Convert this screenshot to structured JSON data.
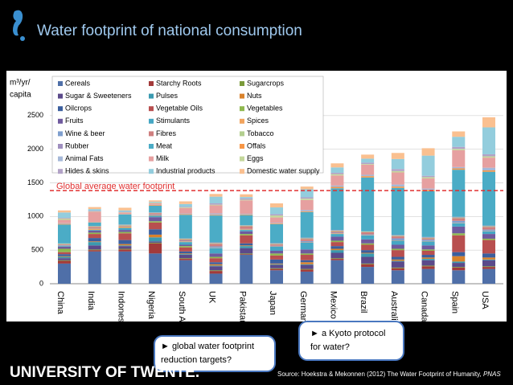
{
  "chart_data": {
    "type": "bar",
    "stacked": true,
    "title": "Water footprint of national consumption",
    "y_label": [
      "m³/yr/",
      "capita"
    ],
    "categories": [
      "China",
      "India",
      "Indonesia",
      "Nigeria",
      "South Africa",
      "UK",
      "Pakistan",
      "Japan",
      "Germany",
      "Mexico",
      "Brazil",
      "Australia",
      "Canada",
      "Spain",
      "USA"
    ],
    "ylim": [
      0,
      3000
    ],
    "yticks": [
      0,
      500,
      1000,
      1500,
      2000,
      2500
    ],
    "grid": true,
    "reference_line": {
      "value": 1385,
      "label": "Global average water footprint",
      "color": "#e03030"
    },
    "series": [
      {
        "name": "Cereals",
        "color": "#4f6fa8",
        "values": [
          300,
          480,
          480,
          450,
          350,
          150,
          430,
          200,
          180,
          350,
          250,
          200,
          220,
          200,
          220
        ]
      },
      {
        "name": "Starchy Roots",
        "color": "#a33a3a",
        "values": [
          40,
          20,
          30,
          150,
          20,
          40,
          10,
          20,
          30,
          20,
          40,
          30,
          40,
          40,
          30
        ]
      },
      {
        "name": "Sugarcrops",
        "color": "#7a9a3a",
        "values": [
          10,
          10,
          10,
          10,
          10,
          10,
          10,
          10,
          10,
          10,
          10,
          10,
          10,
          10,
          10
        ]
      },
      {
        "name": "Sugar & Sweeteners",
        "color": "#5b4a8a",
        "values": [
          30,
          60,
          40,
          20,
          50,
          60,
          80,
          50,
          60,
          80,
          100,
          90,
          80,
          60,
          90
        ]
      },
      {
        "name": "Pulses",
        "color": "#3a9ab0",
        "values": [
          20,
          50,
          10,
          60,
          10,
          10,
          30,
          10,
          10,
          40,
          50,
          10,
          20,
          20,
          10
        ]
      },
      {
        "name": "Nuts",
        "color": "#d9822b",
        "values": [
          10,
          10,
          20,
          40,
          10,
          20,
          10,
          10,
          30,
          20,
          10,
          20,
          20,
          80,
          30
        ]
      },
      {
        "name": "Oilcrops",
        "color": "#3b5f9e",
        "values": [
          30,
          50,
          60,
          80,
          30,
          30,
          30,
          60,
          30,
          40,
          40,
          40,
          40,
          60,
          60
        ]
      },
      {
        "name": "Vegetable Oils",
        "color": "#b84f4f",
        "values": [
          30,
          60,
          100,
          100,
          60,
          60,
          120,
          60,
          80,
          60,
          80,
          100,
          60,
          250,
          200
        ]
      },
      {
        "name": "Vegetables",
        "color": "#8fb84f",
        "values": [
          50,
          20,
          20,
          20,
          20,
          20,
          20,
          30,
          20,
          20,
          20,
          20,
          20,
          30,
          20
        ]
      },
      {
        "name": "Fruits",
        "color": "#6f5a9e",
        "values": [
          30,
          30,
          30,
          60,
          20,
          50,
          40,
          40,
          60,
          60,
          60,
          60,
          60,
          100,
          70
        ]
      },
      {
        "name": "Stimulants",
        "color": "#45a7c4",
        "values": [
          10,
          10,
          30,
          20,
          40,
          80,
          20,
          60,
          100,
          40,
          60,
          60,
          60,
          50,
          40
        ]
      },
      {
        "name": "Spices",
        "color": "#f2a45e",
        "values": [
          5,
          20,
          20,
          10,
          10,
          5,
          10,
          5,
          5,
          10,
          5,
          5,
          5,
          5,
          5
        ]
      },
      {
        "name": "Wine & beer",
        "color": "#7f9fcf",
        "values": [
          10,
          5,
          5,
          10,
          10,
          20,
          5,
          10,
          20,
          10,
          10,
          30,
          20,
          30,
          20
        ]
      },
      {
        "name": "Fibres",
        "color": "#cf7f7f",
        "values": [
          10,
          20,
          10,
          20,
          20,
          40,
          40,
          20,
          30,
          20,
          30,
          30,
          20,
          40,
          40
        ]
      },
      {
        "name": "Tobacco",
        "color": "#b3cf8f",
        "values": [
          10,
          10,
          10,
          5,
          10,
          10,
          10,
          10,
          10,
          10,
          10,
          10,
          10,
          10,
          10
        ]
      },
      {
        "name": "Rubber",
        "color": "#9f8fbf",
        "values": [
          5,
          5,
          5,
          5,
          5,
          10,
          5,
          10,
          10,
          10,
          5,
          10,
          10,
          10,
          10
        ]
      },
      {
        "name": "Meat",
        "color": "#4bacc6",
        "values": [
          280,
          50,
          150,
          100,
          350,
          400,
          150,
          280,
          380,
          620,
          800,
          700,
          680,
          700,
          800
        ]
      },
      {
        "name": "Offals",
        "color": "#f79646",
        "values": [
          10,
          5,
          5,
          10,
          10,
          10,
          10,
          10,
          10,
          20,
          20,
          20,
          20,
          20,
          20
        ]
      },
      {
        "name": "Animal Fats",
        "color": "#a5b8d8",
        "values": [
          10,
          5,
          5,
          5,
          10,
          20,
          10,
          10,
          20,
          20,
          20,
          30,
          20,
          20,
          40
        ]
      },
      {
        "name": "Milk",
        "color": "#e6a0a0",
        "values": [
          50,
          150,
          20,
          20,
          80,
          120,
          200,
          80,
          150,
          150,
          150,
          180,
          150,
          250,
          150
        ]
      },
      {
        "name": "Eggs",
        "color": "#c4d79b",
        "values": [
          20,
          5,
          5,
          10,
          10,
          10,
          10,
          30,
          20,
          20,
          10,
          20,
          20,
          20,
          20
        ]
      },
      {
        "name": "Hides & skins",
        "color": "#b2a2c7",
        "values": [
          10,
          10,
          5,
          5,
          10,
          20,
          20,
          20,
          20,
          20,
          20,
          30,
          20,
          30,
          30
        ]
      },
      {
        "name": "Industrial products",
        "color": "#93cddd",
        "values": [
          80,
          25,
          20,
          10,
          40,
          100,
          20,
          100,
          120,
          80,
          60,
          150,
          300,
          150,
          400
        ]
      },
      {
        "name": "Domestic water supply",
        "color": "#fac090",
        "values": [
          30,
          30,
          40,
          20,
          40,
          40,
          40,
          60,
          40,
          60,
          60,
          90,
          110,
          80,
          150
        ]
      }
    ]
  },
  "callouts": [
    "► global water footprint reduction targets?",
    "► a Kyoto protocol for water?"
  ],
  "footer": {
    "logo": "UNIVERSITY OF TWENTE.",
    "source": "Source: Hoekstra & Mekonnen (2012) The Water Footprint of Humanity, ",
    "source_journal": "PNAS"
  }
}
